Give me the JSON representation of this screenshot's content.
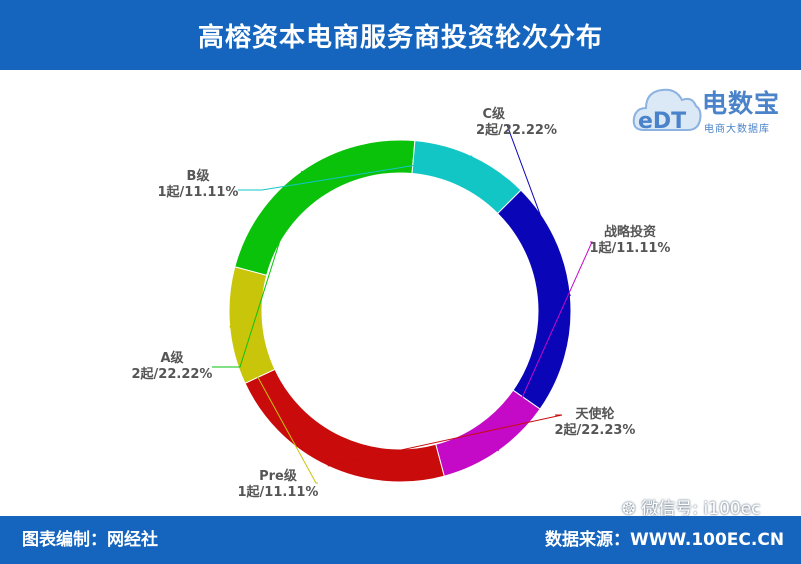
{
  "header": {
    "title": "高榕资本电商服务商投资轮次分布"
  },
  "footer": {
    "left": "图表编制：网经社",
    "right": "数据来源：WWW.100EC.CN",
    "wechat": "微信号: i100ec"
  },
  "logo": {
    "brand": "电数宝",
    "mark": "eDT",
    "sub": "电商大数据库"
  },
  "colors": {
    "header_bg": "#1565bf",
    "C级": "#0a06b8",
    "战略投资": "#c40ac6",
    "天使轮": "#c90b0b",
    "Pre级": "#c8c50a",
    "A级": "#0ac20a",
    "B级": "#12c6c6"
  },
  "chart_data": {
    "type": "pie",
    "donut": true,
    "start_angle_deg": 45,
    "direction": "clockwise",
    "slices": [
      {
        "name": "C级",
        "value": 2,
        "percent": "22.22%",
        "text": "2起/22.22%",
        "color": "#0a06b8"
      },
      {
        "name": "战略投资",
        "value": 1,
        "percent": "11.11%",
        "text": "1起/11.11%",
        "color": "#c40ac6"
      },
      {
        "name": "天使轮",
        "value": 2,
        "percent": "22.23%",
        "text": "2起/22.23%",
        "color": "#c90b0b"
      },
      {
        "name": "Pre级",
        "value": 1,
        "percent": "11.11%",
        "text": "1起/11.11%",
        "color": "#c8c50a"
      },
      {
        "name": "A级",
        "value": 2,
        "percent": "22.22%",
        "text": "2起/22.22%",
        "color": "#0ac20a"
      },
      {
        "name": "B级",
        "value": 1,
        "percent": "11.11%",
        "text": "1起/11.11%",
        "color": "#12c6c6"
      }
    ]
  }
}
